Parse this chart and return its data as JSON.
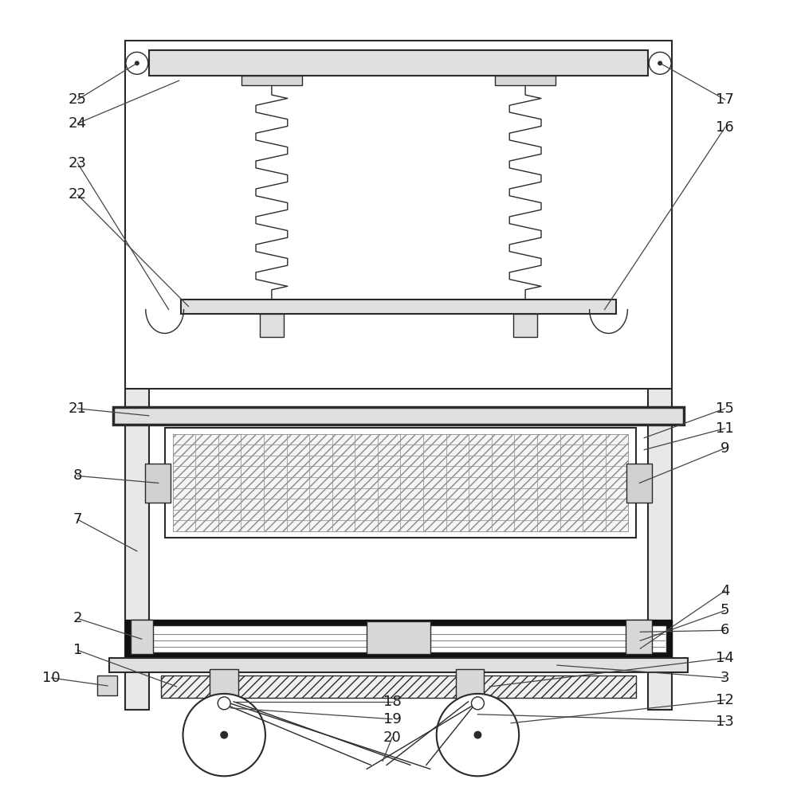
{
  "bg_color": "#ffffff",
  "line_color": "#2a2a2a",
  "label_color": "#1a1a1a",
  "fig_width": 10.0,
  "fig_height": 9.93
}
